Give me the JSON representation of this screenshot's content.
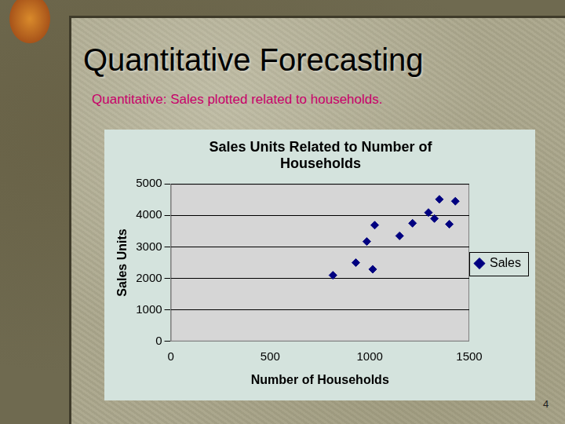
{
  "slide": {
    "title": "Quantitative Forecasting",
    "subtitle": "Quantitative: Sales plotted related to households.",
    "page": "4"
  },
  "chart_data": {
    "type": "scatter",
    "title": "Sales Units Related to Number of Households",
    "x_label": "Number of Households",
    "y_label": "Sales Units",
    "series": [
      {
        "name": "Sales",
        "color": "#000080",
        "marker": "diamond",
        "x": [
          815,
          930,
          985,
          1025,
          1015,
          1150,
          1215,
          1295,
          1325,
          1350,
          1400,
          1430
        ],
        "values": [
          2100,
          2500,
          3170,
          3690,
          2290,
          3350,
          3750,
          4090,
          3900,
          4510,
          3720,
          4450
        ]
      }
    ],
    "xlim": [
      0,
      1500
    ],
    "xticks": [
      0,
      500,
      1000,
      1500
    ],
    "ylim": [
      0,
      5000
    ],
    "yticks": [
      0,
      1000,
      2000,
      3000,
      4000,
      5000
    ],
    "grid": "y",
    "legend": "right"
  }
}
